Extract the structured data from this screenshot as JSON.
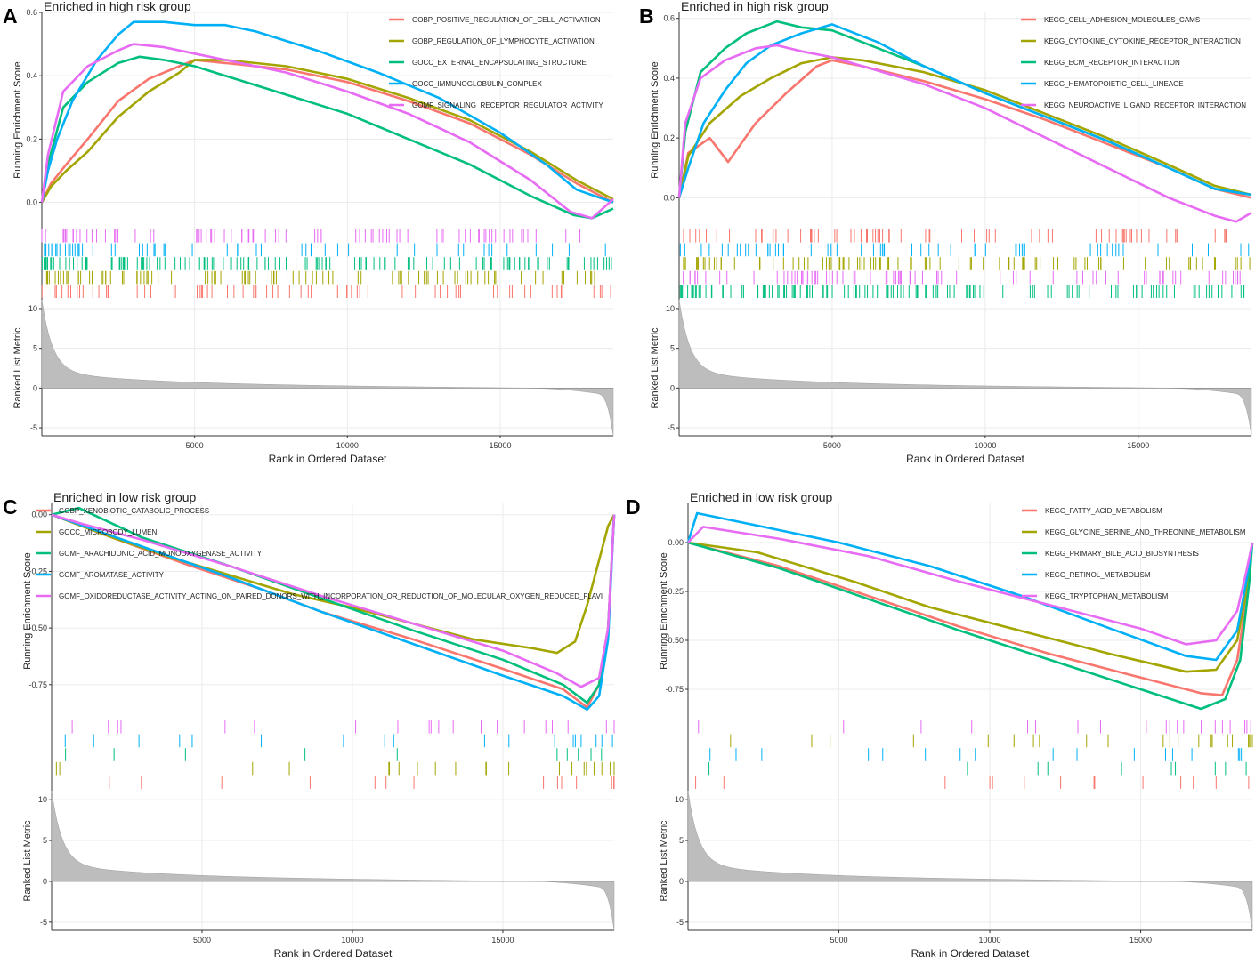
{
  "colors": [
    "#F8766D",
    "#A3A500",
    "#00BF7D",
    "#00B0F6",
    "#E76BF3"
  ],
  "chart_data": [
    {
      "type": "line",
      "panel_label": "A",
      "title": "Enriched in high risk group",
      "ylabel": "Running Enrichment Score",
      "metric_ylabel": "Ranked List Metric",
      "xlabel": "Rank in Ordered Dataset",
      "xlim": [
        0,
        18700
      ],
      "ylim": [
        -0.08,
        0.6
      ],
      "yticks": [
        0.0,
        0.2,
        0.4,
        0.6
      ],
      "ytick_labels": [
        "0.0",
        "0.2",
        "0.4",
        "0.6"
      ],
      "xticks": [
        5000,
        10000,
        15000
      ],
      "xtick_labels": [
        "5000",
        "10000",
        "15000"
      ],
      "metric_ylim": [
        -6,
        11
      ],
      "metric_yticks": [
        10,
        5,
        0,
        -5
      ],
      "metric_ytick_labels": [
        "10",
        "5",
        "0",
        "-5"
      ],
      "legend_position": "top-right",
      "series": [
        {
          "name": "GOBP_POSITIVE_REGULATION_OF_CELL_ACTIVATION",
          "x": [
            0,
            300,
            800,
            1500,
            2500,
            3500,
            4500,
            5000,
            6000,
            8000,
            10000,
            12000,
            14000,
            16000,
            17500,
            18700
          ],
          "y": [
            0.0,
            0.06,
            0.12,
            0.2,
            0.32,
            0.39,
            0.43,
            0.45,
            0.44,
            0.42,
            0.38,
            0.32,
            0.25,
            0.15,
            0.06,
            0.0
          ]
        },
        {
          "name": "GOBP_REGULATION_OF_LYMPHOCYTE_ACTIVATION",
          "x": [
            0,
            300,
            800,
            1500,
            2500,
            3500,
            4500,
            5000,
            6000,
            8000,
            10000,
            12000,
            14000,
            16000,
            17500,
            18700
          ],
          "y": [
            0.0,
            0.05,
            0.1,
            0.16,
            0.27,
            0.35,
            0.41,
            0.45,
            0.45,
            0.43,
            0.39,
            0.33,
            0.26,
            0.16,
            0.07,
            0.01
          ]
        },
        {
          "name": "GOCC_EXTERNAL_ENCAPSULATING_STRUCTURE",
          "x": [
            0,
            200,
            700,
            1500,
            2500,
            3200,
            4000,
            5000,
            6000,
            8000,
            10000,
            12000,
            14000,
            16000,
            17400,
            18000,
            18700
          ],
          "y": [
            0.0,
            0.12,
            0.3,
            0.38,
            0.44,
            0.46,
            0.45,
            0.43,
            0.4,
            0.34,
            0.28,
            0.2,
            0.12,
            0.02,
            -0.04,
            -0.05,
            -0.02
          ]
        },
        {
          "name": "GOCC_IMMUNOGLOBULIN_COMPLEX",
          "x": [
            0,
            200,
            500,
            1000,
            1800,
            2500,
            3000,
            4000,
            5000,
            6000,
            7000,
            9000,
            11000,
            13000,
            15000,
            16500,
            17500,
            18700
          ],
          "y": [
            0.0,
            0.1,
            0.2,
            0.32,
            0.45,
            0.53,
            0.57,
            0.57,
            0.56,
            0.56,
            0.54,
            0.48,
            0.41,
            0.33,
            0.22,
            0.12,
            0.04,
            0.0
          ]
        },
        {
          "name": "GOMF_SIGNALING_RECEPTOR_REGULATOR_ACTIVITY",
          "x": [
            0,
            200,
            700,
            1500,
            2500,
            3000,
            4000,
            5000,
            6000,
            8000,
            10000,
            12000,
            14000,
            16000,
            17300,
            18000,
            18700
          ],
          "y": [
            0.0,
            0.15,
            0.35,
            0.43,
            0.48,
            0.5,
            0.49,
            0.47,
            0.45,
            0.41,
            0.35,
            0.28,
            0.19,
            0.07,
            -0.03,
            -0.05,
            0.01
          ]
        }
      ]
    },
    {
      "type": "line",
      "panel_label": "B",
      "title": "Enriched in high risk group",
      "ylabel": "Running Enrichment Score",
      "metric_ylabel": "Ranked List Metric",
      "xlabel": "Rank in Ordered Dataset",
      "xlim": [
        0,
        18700
      ],
      "ylim": [
        -0.1,
        0.62
      ],
      "yticks": [
        0.0,
        0.2,
        0.4,
        0.6
      ],
      "ytick_labels": [
        "0.0",
        "0.2",
        "0.4",
        "0.6"
      ],
      "xticks": [
        5000,
        10000,
        15000
      ],
      "xtick_labels": [
        "5000",
        "10000",
        "15000"
      ],
      "metric_ylim": [
        -6,
        11
      ],
      "metric_yticks": [
        10,
        5,
        0,
        -5
      ],
      "metric_ytick_labels": [
        "10",
        "5",
        "0",
        "-5"
      ],
      "legend_position": "top-right",
      "series": [
        {
          "name": "KEGG_CELL_ADHESION_MOLECULES_CAMS",
          "x": [
            0,
            300,
            1000,
            1600,
            2500,
            3500,
            4500,
            5000,
            6000,
            8000,
            10000,
            12000,
            14000,
            16000,
            17500,
            18700
          ],
          "y": [
            0.0,
            0.15,
            0.2,
            0.12,
            0.25,
            0.35,
            0.44,
            0.46,
            0.44,
            0.39,
            0.33,
            0.26,
            0.18,
            0.1,
            0.03,
            0.0
          ]
        },
        {
          "name": "KEGG_CYTOKINE_CYTOKINE_RECEPTOR_INTERACTION",
          "x": [
            0,
            300,
            1000,
            2000,
            3000,
            4000,
            5000,
            6000,
            8000,
            10000,
            12000,
            14000,
            16000,
            17500,
            18700
          ],
          "y": [
            0.0,
            0.14,
            0.25,
            0.34,
            0.4,
            0.45,
            0.47,
            0.46,
            0.42,
            0.36,
            0.28,
            0.2,
            0.11,
            0.04,
            0.01
          ]
        },
        {
          "name": "KEGG_ECM_RECEPTOR_INTERACTION",
          "x": [
            0,
            200,
            700,
            1500,
            2200,
            3200,
            4000,
            5000,
            6000,
            8000,
            10000,
            12000,
            14000,
            16000,
            17500,
            18700
          ],
          "y": [
            0.0,
            0.22,
            0.42,
            0.5,
            0.55,
            0.59,
            0.57,
            0.56,
            0.52,
            0.44,
            0.35,
            0.27,
            0.19,
            0.1,
            0.03,
            0.01
          ]
        },
        {
          "name": "KEGG_HEMATOPOIETIC_CELL_LINEAGE",
          "x": [
            0,
            300,
            800,
            1500,
            2200,
            3000,
            4000,
            5000,
            5500,
            6500,
            8000,
            10000,
            12000,
            14000,
            16000,
            17500,
            18700
          ],
          "y": [
            0.0,
            0.1,
            0.25,
            0.36,
            0.45,
            0.51,
            0.55,
            0.58,
            0.56,
            0.52,
            0.44,
            0.35,
            0.27,
            0.19,
            0.1,
            0.03,
            0.01
          ]
        },
        {
          "name": "KEGG_NEUROACTIVE_LIGAND_RECEPTOR_INTERACTION",
          "x": [
            0,
            200,
            700,
            1500,
            2500,
            3200,
            4000,
            5000,
            6000,
            8000,
            10000,
            12000,
            14000,
            16000,
            17500,
            18200,
            18700
          ],
          "y": [
            0.0,
            0.25,
            0.4,
            0.46,
            0.5,
            0.51,
            0.49,
            0.47,
            0.44,
            0.38,
            0.3,
            0.2,
            0.1,
            0.0,
            -0.06,
            -0.08,
            -0.05
          ]
        }
      ]
    },
    {
      "type": "line",
      "panel_label": "C",
      "title": "Enriched in low risk group",
      "ylabel": "Running Enrichment Score",
      "metric_ylabel": "Ranked List Metric",
      "xlabel": "Rank in Ordered Dataset",
      "xlim": [
        0,
        18700
      ],
      "ylim": [
        -0.9,
        0.05
      ],
      "yticks": [
        0.0,
        -0.25,
        -0.5,
        -0.75
      ],
      "ytick_labels": [
        "0.00",
        "-0.25",
        "-0.50",
        "-0.75"
      ],
      "xticks": [
        5000,
        10000,
        15000
      ],
      "xtick_labels": [
        "5000",
        "10000",
        "15000"
      ],
      "metric_ylim": [
        -6,
        11
      ],
      "metric_yticks": [
        10,
        5,
        0,
        -5
      ],
      "metric_ytick_labels": [
        "10",
        "5",
        "0",
        "-5"
      ],
      "legend_position": "top-left",
      "series": [
        {
          "name": "GOBP_XENOBIOTIC_CATABOLIC_PROCESS",
          "x": [
            0,
            2000,
            4500,
            7000,
            9000,
            12000,
            15000,
            17000,
            17800,
            18200,
            18500,
            18700
          ],
          "y": [
            0.0,
            -0.1,
            -0.22,
            -0.33,
            -0.43,
            -0.55,
            -0.68,
            -0.77,
            -0.85,
            -0.75,
            -0.5,
            0.0
          ]
        },
        {
          "name": "GOCC_MICROBODY_LUMEN",
          "x": [
            0,
            2000,
            4000,
            6000,
            8000,
            10000,
            12000,
            14000,
            16000,
            16800,
            17400,
            17800,
            18200,
            18500,
            18700
          ],
          "y": [
            0.0,
            -0.1,
            -0.19,
            -0.27,
            -0.35,
            -0.41,
            -0.48,
            -0.55,
            -0.59,
            -0.61,
            -0.56,
            -0.4,
            -0.2,
            -0.05,
            0.0
          ]
        },
        {
          "name": "GOMF_ARACHIDONIC_ACID_MONOOXYGENASE_ACTIVITY",
          "x": [
            0,
            900,
            3000,
            6000,
            9000,
            12000,
            15000,
            17000,
            17800,
            18200,
            18500,
            18700
          ],
          "y": [
            0.0,
            0.03,
            -0.1,
            -0.23,
            -0.37,
            -0.51,
            -0.64,
            -0.75,
            -0.83,
            -0.75,
            -0.5,
            0.0
          ]
        },
        {
          "name": "GOMF_AROMATASE_ACTIVITY",
          "x": [
            0,
            3000,
            6000,
            9000,
            12000,
            15000,
            17000,
            17800,
            18200,
            18500,
            18700
          ],
          "y": [
            0.0,
            -0.14,
            -0.28,
            -0.43,
            -0.57,
            -0.71,
            -0.8,
            -0.86,
            -0.8,
            -0.55,
            0.0
          ]
        },
        {
          "name": "GOMF_OXIDOREDUCTASE_ACTIVITY_ACTING_ON_PAIRED_DONORS_WITH_INCORPORATION_OR_REDUCTION_OF_MOLECULAR_OXYGEN_REDUCED_FLAVI",
          "x": [
            0,
            1000,
            3000,
            6000,
            9000,
            12000,
            15000,
            16800,
            17600,
            18200,
            18500,
            18700
          ],
          "y": [
            0.0,
            -0.04,
            -0.11,
            -0.23,
            -0.36,
            -0.48,
            -0.6,
            -0.7,
            -0.76,
            -0.72,
            -0.5,
            0.0
          ]
        }
      ]
    },
    {
      "type": "line",
      "panel_label": "D",
      "title": "Enriched in low risk group",
      "ylabel": "Running Enrichment Score",
      "metric_ylabel": "Ranked List Metric",
      "xlabel": "Rank in Ordered Dataset",
      "xlim": [
        0,
        18700
      ],
      "ylim": [
        -0.9,
        0.2
      ],
      "yticks": [
        0.0,
        -0.25,
        -0.5,
        -0.75
      ],
      "ytick_labels": [
        "0.00",
        "-0.25",
        "-0.50",
        "-0.75"
      ],
      "xticks": [
        5000,
        10000,
        15000
      ],
      "xtick_labels": [
        "5000",
        "10000",
        "15000"
      ],
      "metric_ylim": [
        -6,
        11
      ],
      "metric_yticks": [
        10,
        5,
        0,
        -5
      ],
      "metric_ytick_labels": [
        "10",
        "5",
        "0",
        "-5"
      ],
      "legend_position": "top-right",
      "series": [
        {
          "name": "KEGG_FATTY_ACID_METABOLISM",
          "x": [
            0,
            3000,
            6500,
            9000,
            12000,
            15000,
            17000,
            17700,
            18200,
            18500,
            18700
          ],
          "y": [
            0.0,
            -0.12,
            -0.3,
            -0.43,
            -0.57,
            -0.69,
            -0.77,
            -0.78,
            -0.6,
            -0.3,
            0.0
          ]
        },
        {
          "name": "KEGG_GLYCINE_SERINE_AND_THREONINE_METABOLISM",
          "x": [
            0,
            2300,
            5500,
            8000,
            11000,
            14000,
            16500,
            17500,
            18200,
            18500,
            18700
          ],
          "y": [
            0.0,
            -0.05,
            -0.2,
            -0.33,
            -0.45,
            -0.57,
            -0.66,
            -0.65,
            -0.5,
            -0.25,
            0.0
          ]
        },
        {
          "name": "KEGG_PRIMARY_BILE_ACID_BIOSYNTHESIS",
          "x": [
            0,
            3000,
            6000,
            9000,
            12000,
            15000,
            17000,
            17800,
            18300,
            18600,
            18700
          ],
          "y": [
            0.0,
            -0.13,
            -0.29,
            -0.45,
            -0.6,
            -0.75,
            -0.85,
            -0.8,
            -0.6,
            -0.2,
            0.0
          ]
        },
        {
          "name": "KEGG_RETINOL_METABOLISM",
          "x": [
            0,
            300,
            2500,
            5000,
            8000,
            11000,
            14000,
            16500,
            17500,
            18200,
            18500,
            18700
          ],
          "y": [
            0.0,
            0.15,
            0.08,
            0.0,
            -0.12,
            -0.27,
            -0.44,
            -0.58,
            -0.6,
            -0.45,
            -0.2,
            0.0
          ]
        },
        {
          "name": "KEGG_TRYPTOPHAN_METABOLISM",
          "x": [
            0,
            500,
            3000,
            6000,
            9000,
            12000,
            15000,
            16500,
            17500,
            18200,
            18500,
            18700
          ],
          "y": [
            0.0,
            0.08,
            0.02,
            -0.07,
            -0.2,
            -0.32,
            -0.44,
            -0.52,
            -0.5,
            -0.35,
            -0.15,
            0.0
          ]
        }
      ]
    }
  ]
}
